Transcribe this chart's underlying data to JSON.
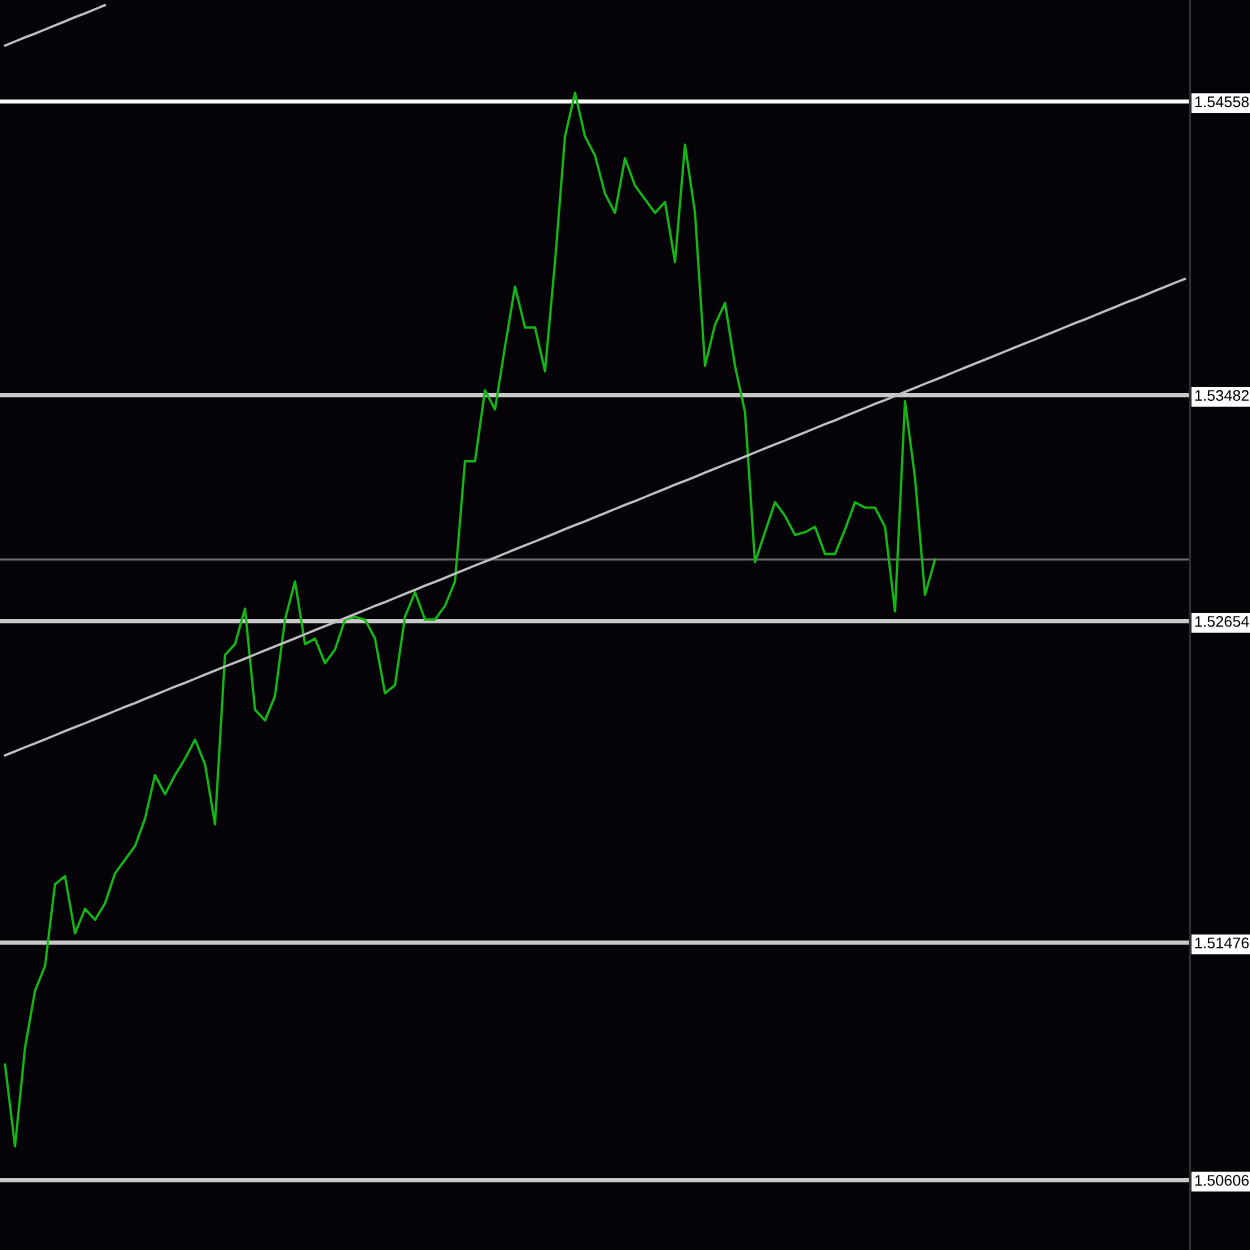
{
  "chart_data": {
    "type": "line",
    "categories": [
      null,
      null,
      null,
      null,
      null,
      null,
      null,
      null,
      null,
      null,
      null,
      null,
      null,
      null,
      null,
      null,
      null,
      null,
      null,
      null,
      null,
      null,
      null,
      null,
      null,
      null,
      null,
      null,
      null,
      null,
      null,
      null,
      null,
      null,
      null,
      null,
      null,
      null,
      null,
      null,
      null,
      null,
      null,
      null,
      null,
      null,
      null,
      null,
      null,
      null,
      null,
      null,
      null,
      null,
      null,
      null,
      null,
      null,
      null,
      null,
      null,
      null,
      null,
      null,
      null,
      null,
      null,
      null,
      null,
      null,
      null,
      null,
      null,
      null,
      null,
      null,
      null,
      null,
      null,
      null,
      null,
      null,
      null,
      null,
      null,
      null,
      null,
      null,
      null,
      null,
      null,
      null,
      null,
      null,
      null,
      null,
      null,
      null,
      null,
      null,
      null,
      null,
      null,
      null,
      null,
      null,
      null,
      null,
      null,
      null,
      null,
      null,
      null,
      null,
      null,
      null,
      null,
      null,
      null
    ],
    "series": [
      {
        "color": "#14b814",
        "values": [
          1.5103,
          1.5073,
          1.5109,
          1.513,
          1.5139,
          1.5169,
          1.5172,
          1.5151,
          1.516,
          1.5156,
          1.5162,
          1.5173,
          1.5178,
          1.5183,
          1.5193,
          1.5209,
          1.5202,
          1.5209,
          1.5215,
          1.5222,
          1.5213,
          1.5191,
          1.5253,
          1.5257,
          1.527,
          1.5233,
          1.5229,
          1.5238,
          1.5266,
          1.528,
          1.5257,
          1.5259,
          1.525,
          1.5255,
          1.5266,
          1.5267,
          1.5266,
          1.5259,
          1.5239,
          1.5242,
          1.5267,
          1.5276,
          1.5266,
          1.5266,
          1.5271,
          1.528,
          1.5324,
          1.5324,
          1.535,
          1.5343,
          1.5366,
          1.5388,
          1.5373,
          1.5373,
          1.5357,
          1.5397,
          1.5443,
          1.5459,
          1.5443,
          1.5436,
          1.5422,
          1.5415,
          1.5435,
          1.5425,
          1.542,
          1.5415,
          1.5419,
          1.5397,
          1.544,
          1.5415,
          1.5359,
          1.5374,
          1.5382,
          1.5359,
          1.5342,
          1.5287,
          1.5298,
          1.5309,
          1.5304,
          1.5297,
          1.5298,
          1.53,
          1.529,
          1.529,
          1.5299,
          1.5309,
          1.5307,
          1.5307,
          1.53,
          1.5269,
          1.5346,
          1.5318,
          1.5275,
          1.5288,
          null,
          null,
          null,
          null,
          null,
          null,
          null,
          null,
          null,
          null,
          null,
          null,
          null,
          null,
          null,
          null,
          null,
          null,
          null,
          null,
          null,
          null,
          null,
          null,
          null
        ]
      },
      {
        "type": "line",
        "color": "#c0c0c0",
        "values": [
          1.52162,
          1.52177,
          1.52192,
          1.52206,
          1.52221,
          1.52236,
          1.52251,
          1.52266,
          1.5228,
          1.52295,
          1.5231,
          1.52325,
          1.5234,
          1.52354,
          1.52369,
          1.52384,
          1.52399,
          1.52414,
          1.52428,
          1.52443,
          1.52458,
          1.52473,
          1.52488,
          1.52502,
          1.52517,
          1.52532,
          1.52547,
          1.52562,
          1.52576,
          1.52591,
          1.52606,
          1.52621,
          1.52636,
          1.5265,
          1.52665,
          1.5268,
          1.52695,
          1.5271,
          1.52724,
          1.52739,
          1.52754,
          1.52769,
          1.52784,
          1.52798,
          1.52813,
          1.52828,
          1.52843,
          1.52858,
          1.52872,
          1.52887,
          1.52902,
          1.52917,
          1.52932,
          1.52946,
          1.52961,
          1.52976,
          1.52991,
          1.53006,
          1.5302,
          1.53035,
          1.5305,
          1.53065,
          1.5308,
          1.53094,
          1.53109,
          1.53124,
          1.53139,
          1.53154,
          1.53168,
          1.53183,
          1.53198,
          1.53213,
          1.53228,
          1.53242,
          1.53257,
          1.53272,
          1.53287,
          1.53302,
          1.53316,
          1.53331,
          1.53346,
          1.53361,
          1.53376,
          1.5339,
          1.53405,
          1.5342,
          1.53435,
          1.5345,
          1.53464,
          1.53479,
          1.53494,
          1.53509,
          1.53524,
          1.53538,
          1.53553,
          1.53568,
          1.53583,
          1.53598,
          1.53612,
          1.53627,
          1.53642,
          1.53657,
          1.53672,
          1.53686,
          1.53701,
          1.53716,
          1.53731,
          1.53746,
          1.5376,
          1.53775,
          1.5379,
          1.53805,
          1.5382,
          1.53834,
          1.53849,
          1.53864,
          1.53879,
          1.53894,
          1.53908
        ]
      },
      {
        "type": "line",
        "color": "#c0c0c0",
        "values": [
          1.54763,
          1.54778,
          1.54793,
          1.54807,
          1.54822,
          1.54837,
          1.54852,
          1.54867,
          1.54881,
          1.54896,
          1.54911,
          null,
          null,
          null,
          null,
          null,
          null,
          null,
          null,
          null,
          null,
          null,
          null,
          null,
          null,
          null,
          null,
          null,
          null,
          null,
          null,
          null,
          null,
          null,
          null,
          null,
          null,
          null,
          null,
          null,
          null,
          null,
          null,
          null,
          null,
          null,
          null,
          null,
          null,
          null,
          null,
          null,
          null,
          null,
          null,
          null,
          null,
          null,
          null,
          null,
          null,
          null,
          null,
          null,
          null,
          null,
          null,
          null,
          null,
          null,
          null,
          null,
          null,
          null,
          null,
          null,
          null,
          null,
          null,
          null,
          null,
          null,
          null,
          null,
          null,
          null,
          null,
          null,
          null,
          null,
          null,
          null,
          null,
          null,
          null,
          null,
          null,
          null,
          null,
          null,
          null,
          null,
          null,
          null,
          null,
          null,
          null,
          null,
          null,
          null,
          null,
          null,
          null,
          null,
          null,
          null,
          null,
          null,
          null
        ]
      }
    ],
    "ylim": [
      1.5035,
      1.5493
    ],
    "yticks": [
      1.54558,
      1.53482,
      1.52654,
      1.51476,
      1.50606
    ],
    "tick_labels": "y",
    "ref_lines": [
      {
        "axis": "y",
        "value": 1.54558,
        "color": "#ffffff"
      },
      {
        "axis": "y",
        "value": 1.53482,
        "color": "#c8c8c8"
      },
      {
        "axis": "y",
        "value": 1.52654,
        "color": "#c8c8c8"
      },
      {
        "axis": "y",
        "value": 1.51476,
        "color": "#c8c8c8"
      },
      {
        "axis": "y",
        "value": 1.50606,
        "color": "#c8c8c8"
      },
      {
        "axis": "y",
        "value": 1.5288,
        "color": "#6e6e6e"
      }
    ]
  }
}
